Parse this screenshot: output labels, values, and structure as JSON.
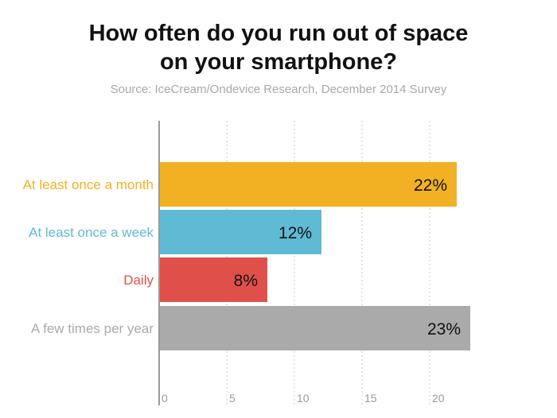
{
  "title_lines": [
    "How often do you run out of space",
    "on your smartphone?"
  ],
  "source": "Source: IceCream/Ondevice Research, December 2014 Survey",
  "chart_data": {
    "type": "bar",
    "orientation": "horizontal",
    "title": "How often do you run out of space on your smartphone?",
    "subtitle": "Source: IceCream/Ondevice Research, December 2014 Survey",
    "categories": [
      "At least once a month",
      "At least once a week",
      "Daily",
      "A few times per year"
    ],
    "values": [
      22,
      12,
      8,
      23
    ],
    "value_labels": [
      "22%",
      "12%",
      "8%",
      "23%"
    ],
    "colors": [
      "#f2b122",
      "#5fbad3",
      "#e0504a",
      "#aaaaaa"
    ],
    "xticks": [
      0,
      5,
      10,
      15,
      20
    ],
    "xtick_labels": [
      "0",
      "5",
      "10",
      "15",
      "20"
    ],
    "xlim": [
      0,
      23
    ],
    "xlabel": "",
    "ylabel": "",
    "grid": "vertical dotted"
  }
}
